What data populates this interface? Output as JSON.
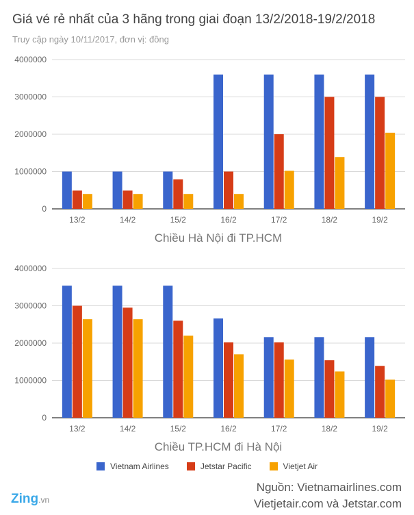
{
  "header": {
    "title": "Giá vé rẻ nhất của 3 hãng trong giai đoạn 13/2/2018-19/2/2018",
    "subtitle": "Truy cập ngày 10/11/2017, đơn vị: đồng"
  },
  "colors": {
    "vietnam_airlines": "#3a65cc",
    "jetstar_pacific": "#d63c17",
    "vietjet_air": "#f7a100",
    "grid": "#d8d8d8",
    "axis": "#333333"
  },
  "chart_data": [
    {
      "type": "bar",
      "xlabel": "Chiều Hà Nội đi TP.HCM",
      "ylabel": "",
      "ylim": [
        0,
        4000000
      ],
      "yticks": [
        "0",
        "1000000",
        "2000000",
        "3000000",
        "4000000"
      ],
      "categories": [
        "13/2",
        "14/2",
        "15/2",
        "16/2",
        "17/2",
        "18/2",
        "19/2"
      ],
      "series": [
        {
          "name": "Vietnam Airlines",
          "values": [
            1000000,
            1000000,
            1000000,
            3600000,
            3600000,
            3600000,
            3600000
          ]
        },
        {
          "name": "Jetstar Pacific",
          "values": [
            490000,
            490000,
            790000,
            1000000,
            2000000,
            3000000,
            3000000
          ]
        },
        {
          "name": "Vietjet Air",
          "values": [
            400000,
            400000,
            400000,
            400000,
            1020000,
            1390000,
            2040000
          ]
        }
      ],
      "grid": true
    },
    {
      "type": "bar",
      "xlabel": "Chiều TP.HCM đi Hà Nội",
      "ylabel": "",
      "ylim": [
        0,
        4000000
      ],
      "yticks": [
        "0",
        "1000000",
        "2000000",
        "3000000",
        "4000000"
      ],
      "categories": [
        "13/2",
        "14/2",
        "15/2",
        "16/2",
        "17/2",
        "18/2",
        "19/2"
      ],
      "series": [
        {
          "name": "Vietnam Airlines",
          "values": [
            3540000,
            3540000,
            3540000,
            2660000,
            2160000,
            2160000,
            2160000
          ]
        },
        {
          "name": "Jetstar Pacific",
          "values": [
            3000000,
            2950000,
            2600000,
            2020000,
            2020000,
            1540000,
            1390000
          ]
        },
        {
          "name": "Vietjet Air",
          "values": [
            2640000,
            2640000,
            2200000,
            1700000,
            1560000,
            1240000,
            1020000
          ]
        }
      ],
      "grid": true
    }
  ],
  "legend": {
    "items": [
      "Vietnam Airlines",
      "Jetstar Pacific",
      "Vietjet Air"
    ]
  },
  "footer": {
    "logo": "Zing",
    "logo_suffix": ".vn",
    "source_line1": "Nguồn: Vietnamairlines.com",
    "source_line2": "Vietjetair.com và Jetstar.com"
  }
}
